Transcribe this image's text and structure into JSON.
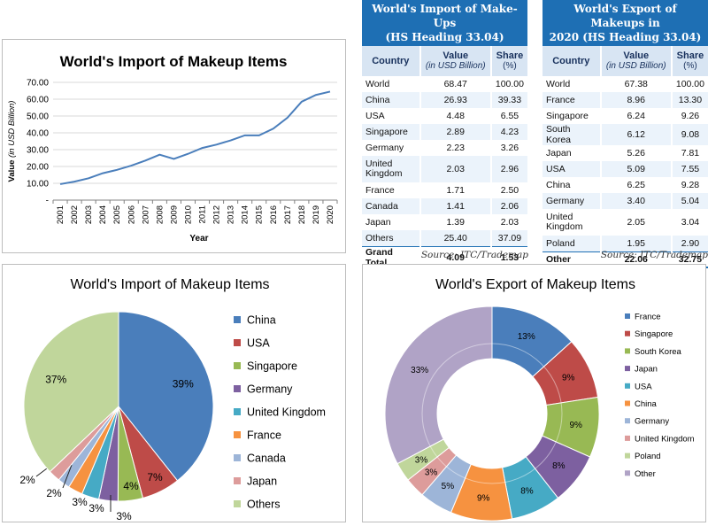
{
  "line_chart": {
    "title": "World's Import of Makeup Items",
    "ylabel": "Value",
    "ylabel_italic": "(in USD Billion)",
    "xlabel": "Year",
    "y_ticks": [
      "-",
      "10.00",
      "20.00",
      "30.00",
      "40.00",
      "50.00",
      "60.00",
      "70.00"
    ]
  },
  "import_table": {
    "title_line1": "World's Import of Make-Ups",
    "title_line2": "(HS Heading 33.04)",
    "col_country": "Country",
    "col_value": "Value",
    "col_value_sub": "(in USD Billion)",
    "col_share": "Share",
    "col_share_sub": "(%)",
    "rows": [
      {
        "country": "World",
        "value": "68.47",
        "share": "100.00"
      },
      {
        "country": "China",
        "value": "26.93",
        "share": "39.33"
      },
      {
        "country": "USA",
        "value": "4.48",
        "share": "6.55"
      },
      {
        "country": "Singapore",
        "value": "2.89",
        "share": "4.23"
      },
      {
        "country": "Germany",
        "value": "2.23",
        "share": "3.26"
      },
      {
        "country": "United Kingdom",
        "value": "2.03",
        "share": "2.96"
      },
      {
        "country": "France",
        "value": "1.71",
        "share": "2.50"
      },
      {
        "country": "Canada",
        "value": "1.41",
        "share": "2.06"
      },
      {
        "country": "Japan",
        "value": "1.39",
        "share": "2.03"
      },
      {
        "country": "Others",
        "value": "25.40",
        "share": "37.09"
      }
    ],
    "total": {
      "country": "Grand Total",
      "value": "4.09",
      "share": "1.53"
    },
    "source": "Source: ITC/Trademap"
  },
  "export_table": {
    "title_line1": "World's Export of Makeups in",
    "title_line2": "2020 (HS Heading 33.04)",
    "col_country": "Country",
    "col_value": "Value",
    "col_value_sub": "(in USD Billion)",
    "col_share": "Share",
    "col_share_sub": "(%)",
    "rows": [
      {
        "country": "World",
        "value": "67.38",
        "share": "100.00"
      },
      {
        "country": "France",
        "value": "8.96",
        "share": "13.30"
      },
      {
        "country": "Singapore",
        "value": "6.24",
        "share": "9.26"
      },
      {
        "country": "South Korea",
        "value": "6.12",
        "share": "9.08"
      },
      {
        "country": "Japan",
        "value": "5.26",
        "share": "7.81"
      },
      {
        "country": "USA",
        "value": "5.09",
        "share": "7.55"
      },
      {
        "country": "China",
        "value": "6.25",
        "share": "9.28"
      },
      {
        "country": "Germany",
        "value": "3.40",
        "share": "5.04"
      },
      {
        "country": "United Kingdom",
        "value": "2.05",
        "share": "3.04"
      },
      {
        "country": "Poland",
        "value": "1.95",
        "share": "2.90"
      }
    ],
    "total": {
      "country": "Other",
      "value": "22.06",
      "share": "32.75"
    },
    "source": "Source: ITC/Trademap"
  },
  "chart_data": [
    {
      "type": "line",
      "title": "World's Import of Makeup Items",
      "xlabel": "Year",
      "ylabel": "Value (in USD Billion)",
      "ylim": [
        0,
        70
      ],
      "grid": true,
      "x": [
        "2001",
        "2002",
        "2003",
        "2004",
        "2005",
        "2006",
        "2007",
        "2008",
        "2009",
        "2010",
        "2011",
        "2012",
        "2013",
        "2014",
        "2015",
        "2016",
        "2017",
        "2018",
        "2019",
        "2020"
      ],
      "series": [
        {
          "values": [
            9.5,
            11.0,
            13.0,
            16.0,
            18.0,
            20.5,
            23.5,
            27.0,
            24.5,
            27.5,
            31.0,
            33.0,
            35.5,
            38.5,
            38.5,
            42.5,
            49.0,
            58.5,
            62.5,
            64.5
          ],
          "color": "#4a7ebb"
        }
      ]
    },
    {
      "type": "pie",
      "title": "World's Import of Makeup Items",
      "legend": "right",
      "categories": [
        "China",
        "USA",
        "Singapore",
        "Germany",
        "United Kingdom",
        "France",
        "Canada",
        "Japan",
        "Others"
      ],
      "values": [
        39.33,
        6.55,
        4.23,
        3.26,
        2.96,
        2.5,
        2.06,
        2.03,
        37.09
      ],
      "labels": [
        "39%",
        "7%",
        "4%",
        "3%",
        "3%",
        "3%",
        "2%",
        "2%",
        "37%"
      ],
      "colors": [
        "#4a7ebb",
        "#be4b48",
        "#98b954",
        "#7d60a0",
        "#46aac5",
        "#f69240",
        "#9db5d8",
        "#dd9c9b",
        "#c0d69b"
      ]
    },
    {
      "type": "pie",
      "title": "World's Export of Makeup Items",
      "legend": "right",
      "categories": [
        "France",
        "Singapore",
        "South Korea",
        "Japan",
        "USA",
        "China",
        "Germany",
        "United Kingdom",
        "Poland",
        "Other"
      ],
      "values": [
        13.3,
        9.26,
        9.08,
        7.81,
        7.55,
        9.28,
        5.04,
        3.04,
        2.9,
        32.75
      ],
      "labels": [
        "13%",
        "9%",
        "9%",
        "8%",
        "8%",
        "9%",
        "5%",
        "3%",
        "3%",
        "33%"
      ],
      "colors": [
        "#4a7ebb",
        "#be4b48",
        "#98b954",
        "#7d60a0",
        "#46aac5",
        "#f69240",
        "#9db5d8",
        "#dd9c9b",
        "#c0d69b",
        "#b0a3c6"
      ]
    }
  ]
}
